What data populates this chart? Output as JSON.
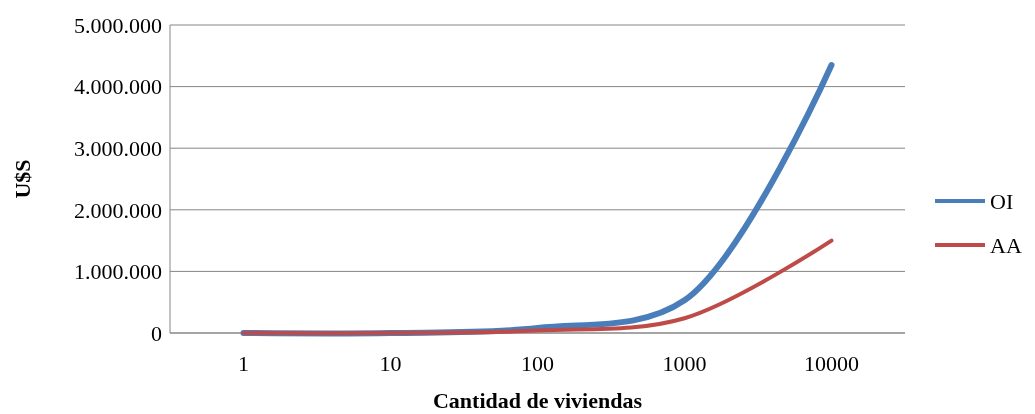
{
  "chart_data": {
    "type": "line",
    "xlabel": "Cantidad de viviendas",
    "ylabel": "U$S",
    "categories": [
      "1",
      "10",
      "100",
      "1000",
      "10000"
    ],
    "series": [
      {
        "name": "OI",
        "color": "#4a7ebb",
        "values": [
          0,
          0,
          80000,
          530000,
          4350000
        ]
      },
      {
        "name": "AA",
        "color": "#be4b48",
        "values": [
          0,
          0,
          40000,
          240000,
          1500000
        ]
      }
    ],
    "ylim": [
      0,
      5000000
    ],
    "yticks": [
      {
        "value": 0,
        "label": "0"
      },
      {
        "value": 1000000,
        "label": "1.000.000"
      },
      {
        "value": 2000000,
        "label": "2.000.000"
      },
      {
        "value": 3000000,
        "label": "3.000.000"
      },
      {
        "value": 4000000,
        "label": "4.000.000"
      },
      {
        "value": 5000000,
        "label": "5.000.000"
      }
    ],
    "grid": "y",
    "legend": "right",
    "marker": "none",
    "line_style": "solid"
  }
}
